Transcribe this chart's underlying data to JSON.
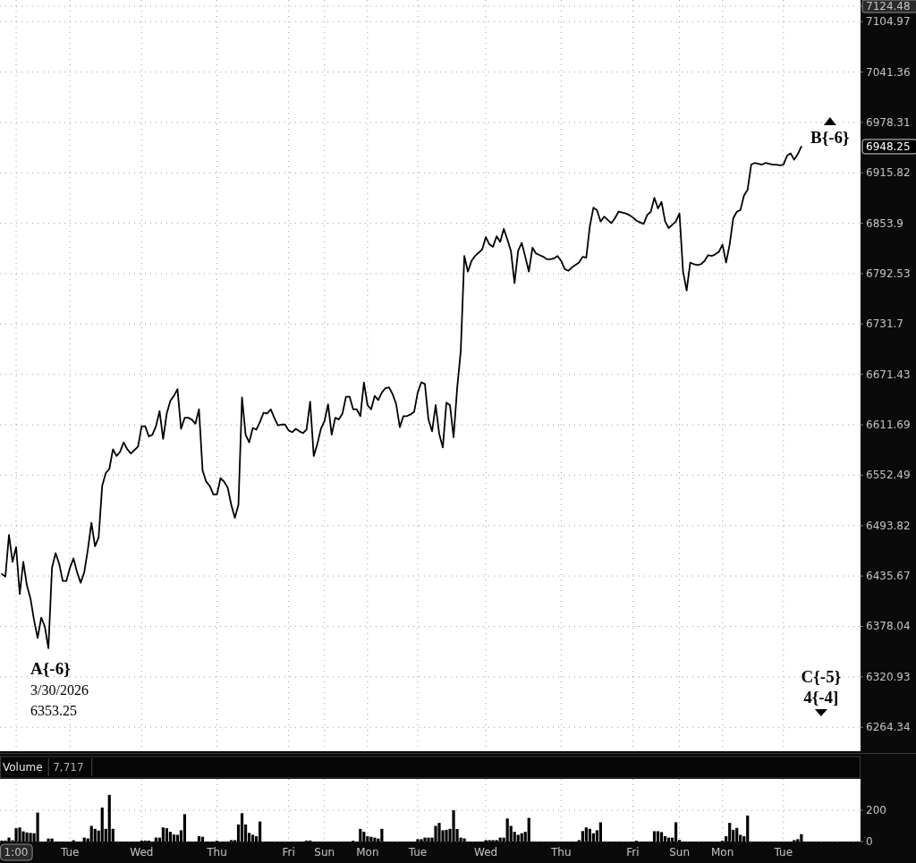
{
  "chart_data": [
    {
      "type": "line",
      "log": "y",
      "grid": true,
      "color": "#000000",
      "categories": [
        null,
        null,
        null,
        null,
        null,
        null,
        null,
        null,
        null,
        null,
        null,
        null,
        null,
        null,
        null,
        null,
        null,
        null,
        null,
        null,
        null,
        null,
        null,
        null,
        null,
        null,
        null,
        null,
        null,
        null,
        null,
        null,
        null,
        null,
        null,
        null,
        null,
        null,
        null,
        null,
        null,
        null,
        null,
        null,
        null,
        null,
        null,
        null,
        null,
        null,
        null,
        null,
        null,
        null,
        null,
        null,
        null,
        null,
        null,
        null,
        null,
        null,
        null,
        null,
        null,
        null,
        null,
        null,
        null,
        null,
        null,
        null,
        null,
        null,
        null,
        null,
        null,
        null,
        null,
        null,
        null,
        null,
        null,
        null,
        null,
        null,
        null,
        null,
        null,
        null,
        null,
        null,
        null,
        null,
        null,
        null,
        null,
        null,
        null,
        null,
        null,
        null,
        null,
        null,
        null,
        null,
        null,
        null,
        null,
        null,
        null,
        null,
        null,
        null,
        null,
        null,
        null,
        null,
        null,
        null,
        null,
        null,
        null,
        null,
        null,
        null,
        null,
        null,
        null,
        null,
        null,
        null,
        null,
        null,
        null,
        null,
        null,
        null,
        null,
        null,
        null,
        null,
        null,
        null,
        null,
        null,
        null,
        null,
        null,
        null,
        null,
        null,
        null,
        null,
        null,
        null,
        null,
        null,
        null,
        null,
        null,
        null,
        null,
        null,
        null,
        null,
        null,
        null,
        null,
        null,
        null,
        null,
        null,
        null,
        null,
        null,
        null,
        null,
        null,
        null,
        null,
        null,
        null,
        null,
        null,
        null,
        null,
        null,
        null,
        null,
        null,
        null,
        null,
        null,
        null,
        null,
        null,
        null,
        null,
        null,
        null,
        null,
        null,
        null,
        null,
        null,
        null,
        null,
        null,
        null,
        null,
        null,
        null,
        null,
        null,
        null,
        null,
        null,
        null,
        null,
        null,
        null,
        null,
        null
      ],
      "ylim": [
        6237.6,
        7124.48
      ],
      "yticks": [
        6264.34,
        6320.93,
        6378.04,
        6435.67,
        6493.82,
        6552.49,
        6611.69,
        6671.43,
        6731.7,
        6792.53,
        6853.9,
        6915.82,
        6978.31,
        7041.36,
        7104.97,
        7124.48
      ],
      "values": [
        6438,
        6435,
        6483,
        6452,
        6469,
        6415,
        6452,
        6425,
        6410,
        6385,
        6365,
        6388,
        6378,
        6353.25,
        6445,
        6462,
        6450,
        6430,
        6430,
        6445,
        6456,
        6440,
        6428,
        6440,
        6466,
        6497,
        6470,
        6480,
        6540,
        6555,
        6560,
        6583,
        6575,
        6580,
        6591,
        6583,
        6578,
        6582,
        6586,
        6610,
        6610,
        6598,
        6600,
        6610,
        6628,
        6595,
        6625,
        6640,
        6646,
        6654,
        6607,
        6620,
        6620,
        6618,
        6613,
        6630,
        6558,
        6545,
        6540,
        6530,
        6530,
        6549,
        6545,
        6538,
        6518,
        6503,
        6518,
        6644,
        6600,
        6591,
        6608,
        6606,
        6615,
        6626,
        6625,
        6630,
        6620,
        6611,
        6612,
        6612,
        6605,
        6603,
        6607,
        6604,
        6602,
        6606,
        6639,
        6575,
        6589,
        6607,
        6616,
        6636,
        6600,
        6620,
        6618,
        6625,
        6645,
        6645,
        6630,
        6630,
        6622,
        6662,
        6635,
        6630,
        6646,
        6641,
        6650,
        6655,
        6656,
        6648,
        6636,
        6609,
        6622,
        6622,
        6624,
        6627,
        6650,
        6662,
        6660,
        6618,
        6604,
        6635,
        6601,
        6585,
        6638,
        6635,
        6597,
        6655,
        6699,
        6814,
        6795,
        6808,
        6814,
        6818,
        6822,
        6837,
        6828,
        6825,
        6838,
        6831,
        6847,
        6834,
        6820,
        6781,
        6820,
        6830,
        6813,
        6795,
        6824,
        6817,
        6815,
        6813,
        6810,
        6810,
        6811,
        6814,
        6808,
        6798,
        6796,
        6800,
        6803,
        6806,
        6813,
        6812,
        6850,
        6873,
        6870,
        6856,
        6862,
        6858,
        6854,
        6860,
        6868,
        6867,
        6866,
        6864,
        6861,
        6857,
        6855,
        6853,
        6864,
        6868,
        6885,
        6872,
        6880,
        6856,
        6848,
        6852,
        6856,
        6866,
        6795,
        6772,
        6806,
        6804,
        6803,
        6804,
        6808,
        6815,
        6814,
        6816,
        6819,
        6828,
        6806,
        6828,
        6860,
        6868,
        6870,
        6888,
        6895,
        6926,
        6928,
        6927,
        6926,
        6928,
        6927,
        6926,
        6926,
        6925,
        6926,
        6937,
        6940,
        6932,
        6939,
        6948.25
      ],
      "annotations": [
        {
          "text": "A{-6}",
          "y": 6353.25
        },
        "3/30/2026",
        "6353.25",
        "B{-6}",
        "C{-5}",
        "4{-4]",
        "6948.25"
      ]
    },
    {
      "type": "bar",
      "title": "Volume",
      "annotations": [
        "7,717"
      ],
      "grid": true,
      "color": "#000000",
      "categories": [
        null,
        null,
        null,
        null,
        "1:00",
        null,
        null,
        null,
        null,
        null,
        null,
        null,
        null,
        null,
        null,
        null,
        null,
        null,
        null,
        "Tue",
        null,
        null,
        null,
        null,
        null,
        null,
        null,
        null,
        null,
        null,
        null,
        null,
        null,
        null,
        null,
        null,
        null,
        null,
        null,
        "Wed",
        null,
        null,
        null,
        null,
        null,
        null,
        null,
        null,
        null,
        null,
        null,
        null,
        null,
        null,
        null,
        null,
        null,
        null,
        null,
        null,
        "Thu",
        null,
        null,
        null,
        null,
        null,
        null,
        null,
        null,
        null,
        null,
        null,
        null,
        null,
        null,
        null,
        null,
        null,
        null,
        null,
        "Fri",
        null,
        null,
        null,
        null,
        null,
        null,
        null,
        null,
        null,
        "Sun",
        null,
        null,
        null,
        null,
        null,
        null,
        null,
        null,
        null,
        null,
        null,
        "Mon",
        null,
        null,
        null,
        null,
        null,
        null,
        null,
        null,
        null,
        null,
        null,
        null,
        null,
        "Tue",
        null,
        null,
        null,
        null,
        null,
        null,
        null,
        null,
        null,
        null,
        null,
        null,
        null,
        null,
        null,
        null,
        null,
        null,
        "Wed",
        null,
        null,
        null,
        null,
        null,
        null,
        null,
        null,
        null,
        null,
        null,
        null,
        null,
        null,
        null,
        null,
        null,
        null,
        null,
        null,
        "Thu",
        null,
        null,
        null,
        null,
        null,
        null,
        null,
        null,
        null,
        null,
        null,
        null,
        null,
        null,
        null,
        null,
        null,
        null,
        null,
        "Fri",
        null,
        null,
        null,
        null,
        null,
        null,
        null,
        null,
        null,
        null,
        null,
        null,
        "Sun",
        null,
        null,
        null,
        null,
        null,
        null,
        null,
        null,
        null,
        null,
        null,
        "Mon",
        null,
        null,
        null,
        null,
        null,
        null,
        null,
        null,
        null,
        null,
        null,
        null,
        null,
        null,
        null,
        null,
        "Tue",
        null,
        null,
        null,
        null,
        null,
        null,
        null,
        null,
        null,
        null,
        null,
        null,
        null,
        null,
        null,
        null,
        null,
        null,
        null,
        null,
        null
      ],
      "ylim": [
        0,
        400
      ],
      "yticks": [
        0,
        200
      ],
      "values": [
        6,
        6,
        25,
        8,
        85,
        90,
        65,
        58,
        55,
        53,
        185,
        null,
        null,
        19,
        19,
        null,
        null,
        null,
        null,
        null,
        8,
        null,
        null,
        25,
        20,
        100,
        81,
        70,
        217,
        81,
        298,
        81,
        null,
        null,
        null,
        null,
        null,
        null,
        null,
        6,
        6,
        6,
        null,
        25,
        25,
        90,
        85,
        62,
        45,
        43,
        72,
        175,
        null,
        null,
        null,
        34,
        30,
        null,
        null,
        null,
        5,
        null,
        null,
        null,
        9,
        9,
        109,
        181,
        109,
        55,
        43,
        34,
        128,
        null,
        null,
        null,
        null,
        null,
        null,
        null,
        null,
        null,
        null,
        null,
        null,
        6,
        6,
        null,
        null,
        null,
        null,
        null,
        null,
        null,
        null,
        null,
        null,
        null,
        5,
        null,
        81,
        62,
        34,
        30,
        25,
        19,
        81,
        null,
        null,
        null,
        null,
        null,
        null,
        null,
        null,
        null,
        15,
        15,
        25,
        25,
        25,
        100,
        119,
        72,
        75,
        81,
        200,
        80,
        25,
        20,
        null,
        null,
        null,
        null,
        null,
        9,
        9,
        9,
        9,
        25,
        25,
        147,
        100,
        62,
        43,
        53,
        62,
        151,
        null,
        null,
        null,
        null,
        null,
        null,
        null,
        null,
        null,
        null,
        null,
        null,
        null,
        9,
        67,
        90,
        81,
        53,
        72,
        123,
        null,
        null,
        null,
        null,
        null,
        null,
        null,
        null,
        null,
        5,
        null,
        null,
        null,
        null,
        66,
        66,
        60,
        34,
        25,
        25,
        123,
        10,
        null,
        null,
        null,
        null,
        null,
        null,
        null,
        null,
        null,
        null,
        null,
        5,
        34,
        119,
        75,
        87,
        43,
        34,
        166,
        null,
        null,
        null,
        null,
        null,
        null,
        null,
        null,
        null,
        null,
        null,
        null,
        9,
        15,
        47,
        null,
        null,
        null,
        null,
        null,
        null,
        null,
        null,
        null,
        null,
        null,
        null,
        null,
        null,
        null,
        null
      ]
    }
  ]
}
